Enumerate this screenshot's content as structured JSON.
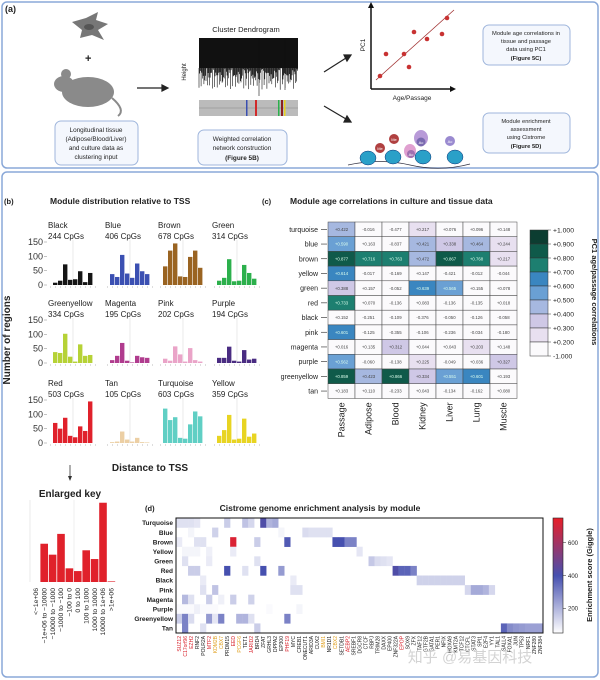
{
  "panel_a": {
    "label": "(a)",
    "plus": "+",
    "input_box": [
      "Longitudinal tissue",
      "(Adipose/Blood/Liver)",
      "and culture data as",
      "clustering input"
    ],
    "dendrogram_title": "Cluster Dendrogram",
    "dendrogram_ylabel": "Height",
    "wgcna_box": [
      "Weighted correlation",
      "network construction",
      "(Figure 5B)"
    ],
    "scatter_ylabel": "PC1",
    "scatter_xlabel": "Age/Passage",
    "corr_box": [
      "Module age correlations in",
      "tissue and passage",
      "data using PC1",
      "(Figure 5C)"
    ],
    "enrich_box": [
      "Module enrichment",
      "assessment",
      "using Cistrome",
      "(Figure 5D)"
    ],
    "histone_marks": [
      "Me",
      "Me",
      "Ac",
      "Ac",
      "Ac"
    ]
  },
  "chart_data": [
    {
      "type": "bar",
      "panel_label": "(b)",
      "title": "Module distribution relative to TSS",
      "ylabel": "Number of regions",
      "xlabel": "Distance to TSS",
      "ylim": [
        0,
        150
      ],
      "yticks": [
        "150",
        "100",
        "50",
        "0"
      ],
      "categories": [
        "<−1e+06",
        "−1e+06 to −10000",
        "−10000 to −1000",
        "−1000 to −100",
        "−100 to 0",
        "0 to 100",
        "100 to 1000",
        "1000 to 10000",
        "10000 to 1e+06",
        ">1e+06"
      ],
      "series": [
        {
          "name": "Black",
          "count": "244 CpGs",
          "color": "#151515",
          "values": [
            0,
            8,
            15,
            72,
            18,
            20,
            48,
            10,
            42,
            0
          ]
        },
        {
          "name": "Blue",
          "count": "406 CpGs",
          "color": "#3b50b2",
          "values": [
            0,
            38,
            28,
            105,
            40,
            25,
            75,
            48,
            38,
            0
          ]
        },
        {
          "name": "Brown",
          "count": "678 CpGs",
          "color": "#9a6422",
          "values": [
            0,
            65,
            120,
            145,
            30,
            28,
            98,
            120,
            60,
            0
          ]
        },
        {
          "name": "Green",
          "count": "314 CpGs",
          "color": "#2cb04c",
          "values": [
            0,
            15,
            25,
            90,
            13,
            15,
            70,
            42,
            22,
            0
          ]
        },
        {
          "name": "Greenyellow",
          "count": "334 CpGs",
          "color": "#b6d236",
          "values": [
            0,
            38,
            35,
            102,
            22,
            5,
            65,
            25,
            28,
            0
          ]
        },
        {
          "name": "Magenta",
          "count": "195 CpGs",
          "color": "#b03c8e",
          "values": [
            0,
            10,
            25,
            70,
            8,
            2,
            25,
            20,
            18,
            0
          ]
        },
        {
          "name": "Pink",
          "count": "202 CpGs",
          "color": "#eaa4c8",
          "values": [
            0,
            15,
            8,
            58,
            30,
            5,
            52,
            10,
            5,
            0
          ]
        },
        {
          "name": "Purple",
          "count": "194 CpGs",
          "color": "#4a2c82",
          "values": [
            0,
            18,
            18,
            57,
            8,
            5,
            45,
            12,
            15,
            0
          ]
        },
        {
          "name": "Red",
          "count": "503 CpGs",
          "color": "#e0212b",
          "values": [
            0,
            70,
            50,
            88,
            25,
            20,
            58,
            42,
            145,
            0
          ]
        },
        {
          "name": "Tan",
          "count": "105 CpGs",
          "color": "#eccfa4",
          "values": [
            0,
            3,
            5,
            40,
            12,
            5,
            18,
            3,
            2,
            0
          ]
        },
        {
          "name": "Turquoise",
          "count": "603 CpGs",
          "color": "#60cfc4",
          "values": [
            0,
            120,
            80,
            90,
            18,
            15,
            65,
            110,
            93,
            0
          ]
        },
        {
          "name": "Yellow",
          "count": "359 CpGs",
          "color": "#e8d422",
          "values": [
            0,
            25,
            45,
            98,
            12,
            15,
            85,
            22,
            33,
            0
          ]
        }
      ],
      "enlarged_key": {
        "title": "Enlarged key",
        "series": "Red"
      }
    },
    {
      "type": "heatmap",
      "panel_label": "(c)",
      "title": "Module age correlations in culture and tissue data",
      "rows": [
        "turquoise",
        "blue",
        "brown",
        "yellow",
        "green",
        "red",
        "black",
        "pink",
        "magenta",
        "purple",
        "greenyellow",
        "tan"
      ],
      "columns": [
        "Passage",
        "Adipose",
        "Blood",
        "Kidney",
        "Liver",
        "Lung",
        "Muscle"
      ],
      "values": [
        [
          0.422,
          -0.016,
          -0.477,
          0.217,
          0.076,
          0.096,
          0.148
        ],
        [
          0.59,
          0.163,
          -0.837,
          0.421,
          0.338,
          0.464,
          0.244
        ],
        [
          0.877,
          0.716,
          0.763,
          0.472,
          0.867,
          0.768,
          0.217
        ],
        [
          0.614,
          -0.017,
          -0.169,
          0.147,
          -0.421,
          -0.012,
          -0.044
        ],
        [
          0.388,
          0.157,
          -0.052,
          0.639,
          0.565,
          0.155,
          0.078
        ],
        [
          0.733,
          0.07,
          -0.136,
          0.083,
          -0.136,
          -0.135,
          0.018
        ],
        [
          0.152,
          -0.251,
          -0.109,
          -0.376,
          -0.05,
          -0.126,
          -0.058
        ],
        [
          0.601,
          -0.125,
          -0.355,
          -0.106,
          -0.236,
          -0.034,
          -0.18
        ],
        [
          0.016,
          0.135,
          0.312,
          0.044,
          0.043,
          0.203,
          0.148
        ],
        [
          0.562,
          -0.06,
          -0.138,
          0.225,
          -0.049,
          0.036,
          0.327
        ],
        [
          0.859,
          0.423,
          0.866,
          0.334,
          0.551,
          0.601,
          0.193
        ],
        [
          0.183,
          0.11,
          -0.233,
          0.043,
          -0.134,
          -0.162,
          0.08
        ]
      ],
      "colorbar_label": "PC1 age/passage correlations",
      "colorbar_ticks": [
        "+1.000",
        "+0.900",
        "+0.800",
        "+0.700",
        "+0.600",
        "+0.500",
        "+0.400",
        "+0.300",
        "+0.200",
        "-1.000"
      ],
      "colorbar_colors": [
        "#0c3d31",
        "#0f5a4a",
        "#1d7f70",
        "#3a86c0",
        "#6aa0d4",
        "#a6b8e0",
        "#cfc8e6",
        "#e8e0f0",
        "#fbfafc"
      ]
    },
    {
      "type": "heatmap",
      "panel_label": "(d)",
      "title": "Cistrome genome enrichment analysis by module",
      "rows": [
        "Turquoise",
        "Blue",
        "Brown",
        "Yellow",
        "Green",
        "Red",
        "Black",
        "Pink",
        "Magenta",
        "Purple",
        "Greenyellow",
        "Tan"
      ],
      "columns": [
        "SUZ12",
        "C17orf96",
        "EZH2",
        "RNF2",
        "POLR2A",
        "MTF2",
        "KDM2B",
        "CBX7",
        "PRDM15",
        "EED",
        "PCGF6",
        "TET1",
        "JARID2",
        "BRD4",
        "ZFAT",
        "GRHL3",
        "DPPA2",
        "EP300",
        "PHF19",
        "MYC",
        "CREB1",
        "ONECUT1",
        "ARID3A",
        "CUX2",
        "BMI1",
        "NR1D1",
        "CBX2",
        "SETDB1",
        "AEBP2",
        "SREBF1",
        "DGCR8",
        "CTCF",
        "RBPJ",
        "TRIM28",
        "DAXX",
        "EP400",
        "ZNF322A",
        "EPOP",
        "SOX9",
        "ZFX",
        "TAF12",
        "GTF2B",
        "GATA1",
        "PER1",
        "NFIX",
        "HOXA9",
        "KMT2A",
        "TCF12",
        "CTCFL",
        "STAT3",
        "SPI1",
        "E2F4",
        "YY1",
        "TAL1",
        "SALL4",
        "FOXA1",
        "JUN",
        "TP53",
        "NRF1",
        "ZNF280",
        "ZNF384"
      ],
      "label_colors": {
        "red": [
          "SUZ12",
          "C17orf96",
          "EZH2",
          "MTF2",
          "EED",
          "JARID2",
          "PHF19",
          "AEBP2",
          "EPOP"
        ],
        "orange": [
          "KDM2B",
          "CBX7",
          "PCGF6",
          "BMI1",
          "CBX2"
        ]
      },
      "cells": [
        [
          [
            0,
            110
          ],
          [
            1,
            110
          ],
          [
            2,
            110
          ],
          [
            3,
            100
          ],
          [
            8,
            150
          ],
          [
            11,
            170
          ],
          [
            12,
            130
          ],
          [
            14,
            420
          ],
          [
            15,
            200
          ],
          [
            16,
            220
          ]
        ],
        [
          [
            2,
            70
          ],
          [
            6,
            140
          ],
          [
            17,
            70
          ],
          [
            21,
            120
          ],
          [
            22,
            110
          ],
          [
            23,
            110
          ],
          [
            24,
            110
          ],
          [
            25,
            110
          ]
        ],
        [
          [
            0,
            90
          ],
          [
            3,
            110
          ],
          [
            4,
            110
          ],
          [
            9,
            720
          ],
          [
            13,
            150
          ],
          [
            18,
            380
          ],
          [
            26,
            400
          ],
          [
            27,
            400
          ],
          [
            28,
            300
          ],
          [
            29,
            300
          ]
        ],
        [
          [
            1,
            70
          ],
          [
            2,
            70
          ],
          [
            3,
            70
          ],
          [
            5,
            80
          ],
          [
            9,
            90
          ],
          [
            30,
            100
          ]
        ],
        [
          [
            1,
            110
          ],
          [
            5,
            90
          ],
          [
            13,
            110
          ],
          [
            32,
            160
          ],
          [
            33,
            120
          ],
          [
            34,
            110
          ],
          [
            35,
            100
          ]
        ],
        [
          [
            2,
            150
          ],
          [
            3,
            150
          ],
          [
            8,
            400
          ],
          [
            11,
            110
          ],
          [
            14,
            400
          ],
          [
            17,
            250
          ],
          [
            36,
            420
          ],
          [
            37,
            360
          ],
          [
            38,
            360
          ],
          [
            39,
            300
          ]
        ],
        [
          [
            4,
            90
          ],
          [
            19,
            90
          ],
          [
            40,
            140
          ],
          [
            41,
            140
          ],
          [
            42,
            140
          ],
          [
            43,
            140
          ],
          [
            44,
            140
          ],
          [
            45,
            140
          ],
          [
            46,
            140
          ],
          [
            47,
            140
          ]
        ],
        [
          [
            4,
            110
          ],
          [
            6,
            170
          ],
          [
            19,
            110
          ],
          [
            20,
            110
          ],
          [
            48,
            130
          ],
          [
            49,
            220
          ],
          [
            50,
            220
          ],
          [
            51,
            200
          ],
          [
            52,
            130
          ]
        ],
        [
          [
            1,
            190
          ],
          [
            2,
            110
          ],
          [
            5,
            150
          ],
          [
            7,
            80
          ],
          [
            9,
            150
          ],
          [
            12,
            140
          ]
        ],
        [
          [
            0,
            60
          ],
          [
            1,
            60
          ],
          [
            2,
            60
          ],
          [
            3,
            80
          ],
          [
            4,
            60
          ],
          [
            5,
            60
          ],
          [
            6,
            60
          ],
          [
            15,
            60
          ],
          [
            20,
            70
          ]
        ],
        [
          [
            0,
            150
          ],
          [
            1,
            300
          ],
          [
            2,
            120
          ],
          [
            5,
            250
          ],
          [
            6,
            100
          ],
          [
            7,
            300
          ],
          [
            10,
            200
          ],
          [
            11,
            200
          ],
          [
            12,
            110
          ],
          [
            18,
            300
          ]
        ],
        [
          [
            1,
            300
          ],
          [
            4,
            110
          ],
          [
            13,
            150
          ],
          [
            54,
            360
          ],
          [
            55,
            280
          ],
          [
            56,
            260
          ],
          [
            57,
            250
          ],
          [
            58,
            240
          ],
          [
            59,
            240
          ],
          [
            60,
            240
          ]
        ]
      ],
      "colorbar_label": "Enrichment score (Giggle)",
      "colorbar_range": [
        50,
        750
      ],
      "colorbar_ticks": [
        600,
        400,
        200
      ]
    }
  ],
  "watermark": "知乎 @易基因科技"
}
